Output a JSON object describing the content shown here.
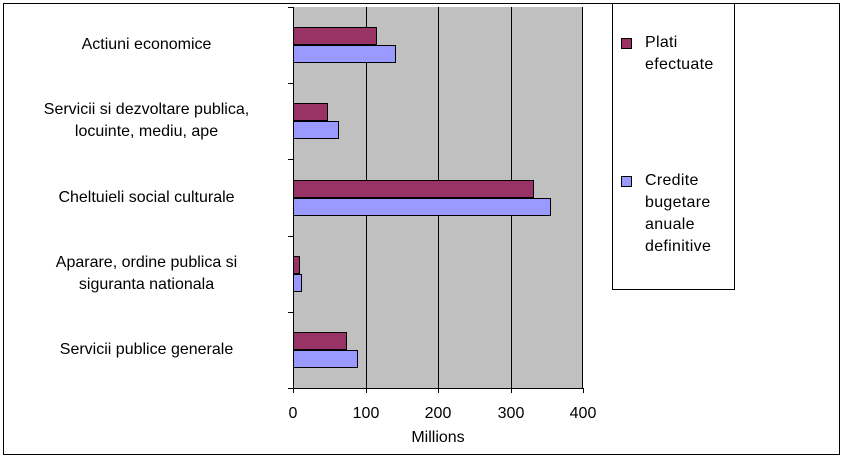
{
  "chart_data": {
    "type": "bar",
    "orientation": "horizontal",
    "categories": [
      "Actiuni economice",
      "Servicii si dezvoltare publica,\nlocuinte, mediu, ape",
      "Cheltuieli social culturale",
      "Aparare, ordine publica si\nsiguranta nationala",
      "Servicii publice generale"
    ],
    "series": [
      {
        "name": "Plati\nefectuate",
        "color": "#993366",
        "values": [
          116,
          48,
          332,
          10,
          75
        ]
      },
      {
        "name": "Credite\nbugetare\nanuale\ndefinitive",
        "color": "#9999ff",
        "values": [
          142,
          63,
          356,
          13,
          90
        ]
      }
    ],
    "xlabel": "Millions",
    "xlim": [
      0,
      400
    ],
    "xticks": [
      "0",
      "100",
      "200",
      "300",
      "400"
    ],
    "grid": true,
    "legend_position": "right"
  }
}
